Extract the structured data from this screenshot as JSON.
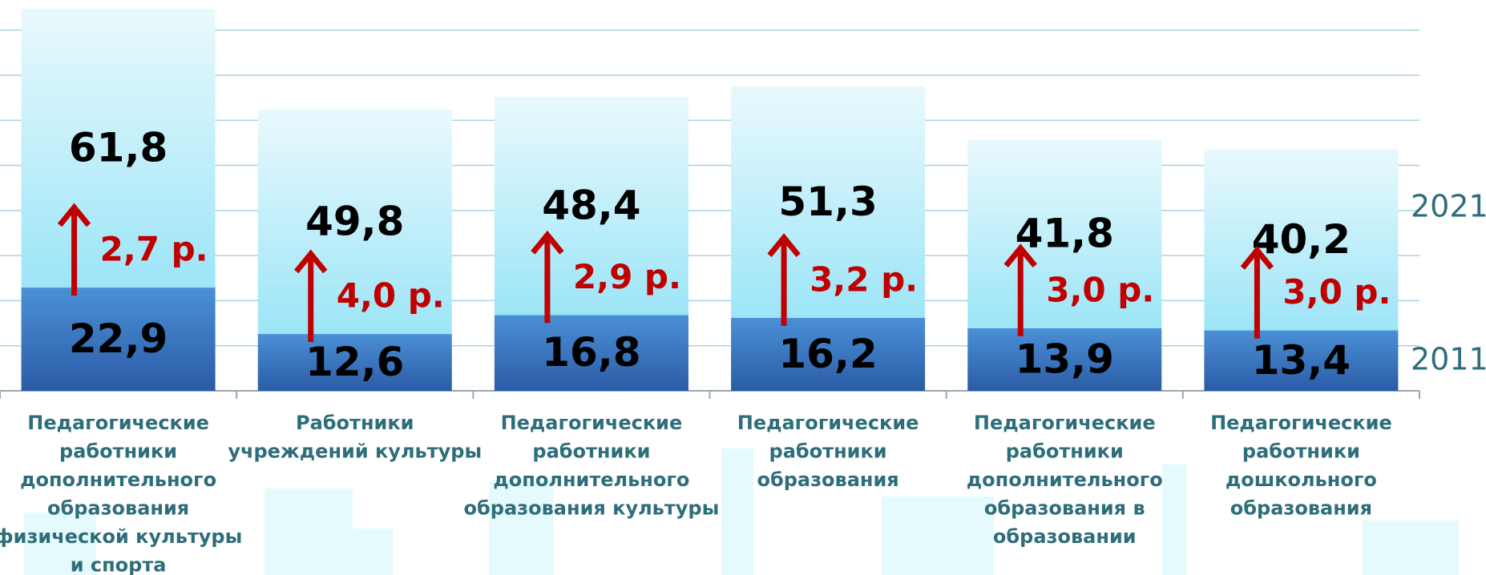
{
  "chart_data": {
    "type": "bar",
    "stacked": true,
    "categories": [
      [
        "Педагогические",
        "работники",
        "дополнительного",
        "образования",
        "физической культуры",
        "и спорта"
      ],
      [
        "Работники",
        "учреждений культуры"
      ],
      [
        "Педагогические",
        "работники",
        "дополнительного",
        "образования культуры"
      ],
      [
        "Педагогические",
        "работники",
        "образования"
      ],
      [
        "Педагогические",
        "работники",
        "дополнительного",
        "образования в",
        "образовании"
      ],
      [
        "Педагогические",
        "работники",
        "дошкольного",
        "образования"
      ]
    ],
    "series": [
      {
        "name": "2011",
        "color": "#3a78c4",
        "values": [
          22.9,
          12.6,
          16.8,
          16.2,
          13.9,
          13.4
        ],
        "value_labels": [
          "22,9",
          "12,6",
          "16,8",
          "16,2",
          "13,9",
          "13,4"
        ]
      },
      {
        "name": "2021",
        "color": "#b8ecf8",
        "values": [
          61.8,
          49.8,
          48.4,
          51.3,
          41.8,
          40.2
        ],
        "value_labels": [
          "61,8",
          "49,8",
          "48,4",
          "51,3",
          "41,8",
          "40,2"
        ]
      }
    ],
    "annotations": [
      "2,7 р.",
      "4,0 р.",
      "2,9 р.",
      "3,2 р.",
      "3,0 р.",
      "3,0 р."
    ],
    "annotation_color": "#c00000",
    "ylim": [
      0,
      85
    ],
    "yticks": [
      0,
      10,
      20,
      30,
      40,
      50,
      60,
      70,
      80
    ],
    "grid": true
  }
}
